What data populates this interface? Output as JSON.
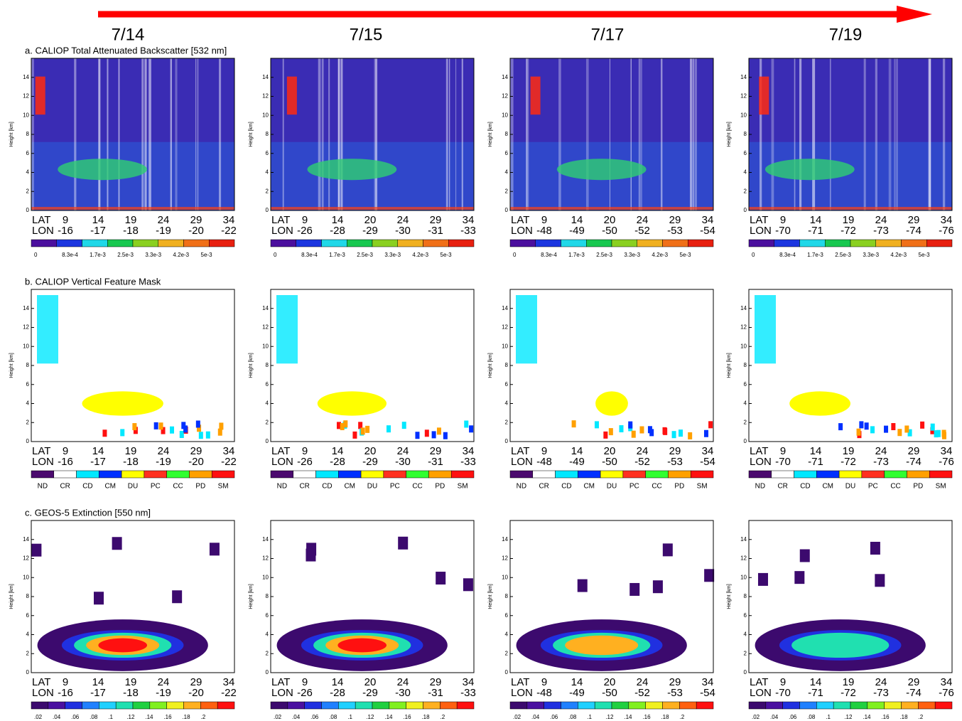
{
  "dates": [
    "7/14",
    "7/15",
    "7/17",
    "7/19"
  ],
  "height_axis": {
    "label": "Height [km]",
    "ticks": [
      "0",
      "2",
      "4",
      "6",
      "8",
      "10",
      "12",
      "14"
    ]
  },
  "columns": [
    {
      "lat": {
        "prefix": "LAT",
        "ticks": [
          "9",
          "14",
          "19",
          "24",
          "29",
          "34"
        ]
      },
      "lon": {
        "prefix": "LON",
        "ticks": [
          "-16",
          "-17",
          "-18",
          "-19",
          "-20",
          "-22"
        ]
      }
    },
    {
      "lat": {
        "prefix": "LAT",
        "ticks": [
          "9",
          "14",
          "20",
          "24",
          "29",
          "34"
        ]
      },
      "lon": {
        "prefix": "LON",
        "ticks": [
          "-26",
          "-28",
          "-29",
          "-30",
          "-31",
          "-33"
        ]
      }
    },
    {
      "lat": {
        "prefix": "LAT",
        "ticks": [
          "9",
          "14",
          "20",
          "24",
          "29",
          "34"
        ]
      },
      "lon": {
        "prefix": "LON",
        "ticks": [
          "-48",
          "-49",
          "-50",
          "-52",
          "-53",
          "-54"
        ]
      }
    },
    {
      "lat": {
        "prefix": "LAT",
        "ticks": [
          "9",
          "14",
          "19",
          "24",
          "29",
          "34"
        ]
      },
      "lon": {
        "prefix": "LON",
        "ticks": [
          "-70",
          "-71",
          "-72",
          "-73",
          "-74",
          "-76"
        ]
      }
    }
  ],
  "rows": [
    {
      "title": "a. CALIOP Total Attenuated Backscatter [532 nm]",
      "colorbar": {
        "colors": [
          "#4b0f9e",
          "#1c36e0",
          "#20d8e8",
          "#18c850",
          "#8ad020",
          "#f0b020",
          "#f07018",
          "#e82010"
        ],
        "labels": [
          "0",
          "8.3e-4",
          "1.7e-3",
          "2.5e-3",
          "3.3e-3",
          "4.2e-3",
          "5e-3"
        ]
      }
    },
    {
      "title": "b. CALIOP Vertical Feature Mask",
      "colorbar": {
        "colors": [
          "#4b0a6e",
          "#ffffff",
          "#00e8ff",
          "#0030ff",
          "#ffff00",
          "#ff3020",
          "#30ff30",
          "#ffa000",
          "#ff1010"
        ],
        "labels": [
          "ND",
          "CR",
          "CD",
          "CM",
          "DU",
          "PC",
          "CC",
          "PD",
          "SM"
        ]
      }
    },
    {
      "title": "c. GEOS-5 Extinction [550 nm]",
      "colorbar": {
        "colors": [
          "#3c0a6e",
          "#4a10a0",
          "#2030e0",
          "#2080ff",
          "#20d0ff",
          "#20e0b0",
          "#20d040",
          "#80f020",
          "#f0f020",
          "#ffb020",
          "#ff6010",
          "#ff1010"
        ],
        "labels": [
          ".02",
          ".04",
          ".06",
          ".08",
          ".1",
          ".12",
          ".14",
          ".16",
          ".18",
          ".2"
        ]
      }
    }
  ]
}
